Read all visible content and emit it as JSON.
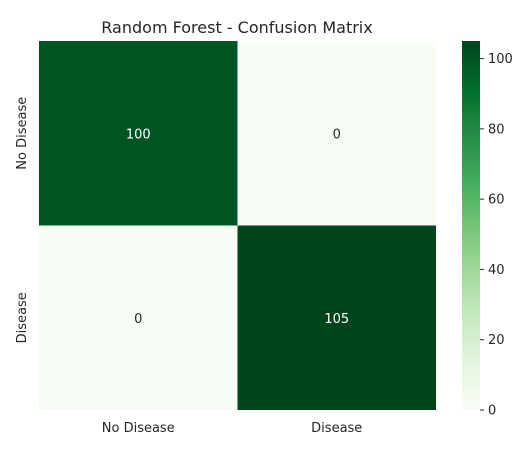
{
  "chart_data": {
    "type": "heatmap",
    "title": "Random Forest - Confusion Matrix",
    "row_labels": [
      "No Disease",
      "Disease"
    ],
    "col_labels": [
      "No Disease",
      "Disease"
    ],
    "values": [
      [
        100,
        0
      ],
      [
        0,
        105
      ]
    ],
    "cell_text": [
      [
        "100",
        "0"
      ],
      [
        "0",
        "105"
      ]
    ],
    "colormap": "Greens",
    "vmin": 0,
    "vmax": 105,
    "colorbar": {
      "ticks": [
        0,
        20,
        40,
        60,
        80,
        100
      ],
      "tick_labels": [
        "0",
        "20",
        "40",
        "60",
        "80",
        "100"
      ]
    },
    "colors": {
      "low": "#f7fcf5",
      "high": "#00441b",
      "annotation_on_dark": "#ffffff",
      "annotation_on_light": "#262626"
    }
  }
}
